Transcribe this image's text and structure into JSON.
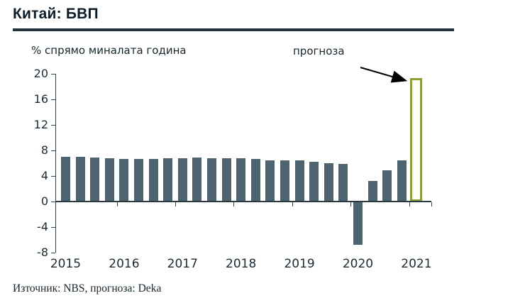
{
  "header": {
    "title": "Китай: БВП"
  },
  "chart_data": {
    "type": "bar",
    "title": "Китай: БВП",
    "ylabel": "% спрямо миналата година",
    "annotation": "прогноза",
    "x_labels": [
      "2015",
      "2016",
      "2017",
      "2018",
      "2019",
      "2020",
      "2021"
    ],
    "yticks": [
      20,
      16,
      12,
      8,
      4,
      0,
      -4,
      -8
    ],
    "ylim": [
      -8,
      20
    ],
    "categories": [
      "2015 Q1",
      "2015 Q2",
      "2015 Q3",
      "2015 Q4",
      "2016 Q1",
      "2016 Q2",
      "2016 Q3",
      "2016 Q4",
      "2017 Q1",
      "2017 Q2",
      "2017 Q3",
      "2017 Q4",
      "2018 Q1",
      "2018 Q2",
      "2018 Q3",
      "2018 Q4",
      "2019 Q1",
      "2019 Q2",
      "2019 Q3",
      "2019 Q4",
      "2020 Q1",
      "2020 Q2",
      "2020 Q3",
      "2020 Q4",
      "2021 Q1"
    ],
    "values": [
      7.0,
      7.0,
      6.9,
      6.8,
      6.7,
      6.7,
      6.7,
      6.8,
      6.8,
      6.9,
      6.8,
      6.8,
      6.8,
      6.7,
      6.5,
      6.4,
      6.4,
      6.2,
      6.0,
      5.9,
      -6.8,
      3.2,
      4.9,
      6.5,
      19.3
    ],
    "forecast_index": 24,
    "bar_color": "#4d6470",
    "forecast_border_color": "#8f9e33",
    "axis_color": "#2a3942",
    "grid": false,
    "legend": false,
    "source": "Източник: NBS, прогноза: Deka"
  }
}
